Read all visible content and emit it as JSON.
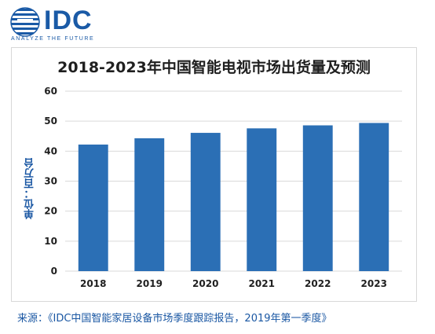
{
  "logo": {
    "brand": "IDC",
    "tagline": "ANALYZE THE FUTURE"
  },
  "colors": {
    "bar": "#2b6fb5",
    "axis_label": "#1a57a3",
    "logo": "#1a5aa6"
  },
  "chart_data": {
    "type": "bar",
    "title": "2018-2023年中国智能电视市场出货量及预测",
    "xlabel": "",
    "ylabel": "单位：百万台",
    "categories": [
      "2018",
      "2019",
      "2020",
      "2021",
      "2022",
      "2023"
    ],
    "values": [
      42.2,
      44.3,
      46.1,
      47.6,
      48.6,
      49.4
    ],
    "ylim": [
      0,
      60
    ],
    "yticks": [
      0,
      10,
      20,
      30,
      40,
      50,
      60
    ],
    "grid": true,
    "legend": "none"
  },
  "source": "来源：《IDC中国智能家居设备市场季度跟踪报告，2019年第一季度》"
}
